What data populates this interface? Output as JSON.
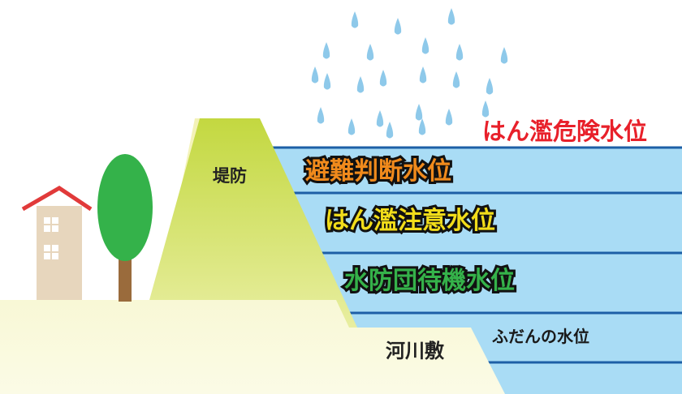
{
  "labels": {
    "levee": "堤防",
    "riverbed": "河川敷",
    "normal_level": "ふだんの水位"
  },
  "levels": {
    "danger": "はん濫危険水位",
    "evacuation": "避難判断水位",
    "warning": "はん濫注意水位",
    "standby": "水防団待機水位"
  },
  "colors": {
    "water": "#a9dcf5",
    "water_line": "#1d5fa6",
    "levee": "#c3d840",
    "ground": "#f3f2b6",
    "danger_text": "#e8202a",
    "evacuation_text": "#f08a1c",
    "warning_text": "#f2dd1a",
    "standby_text": "#35b24a",
    "rain": "#8ec9ea",
    "roof": "#e13a3a",
    "house_wall": "#e7d6bd",
    "tree_leaves": "#34b24a",
    "tree_trunk": "#9a6b3c"
  },
  "icons": [
    "house-icon",
    "tree-icon",
    "raindrop-icon"
  ]
}
